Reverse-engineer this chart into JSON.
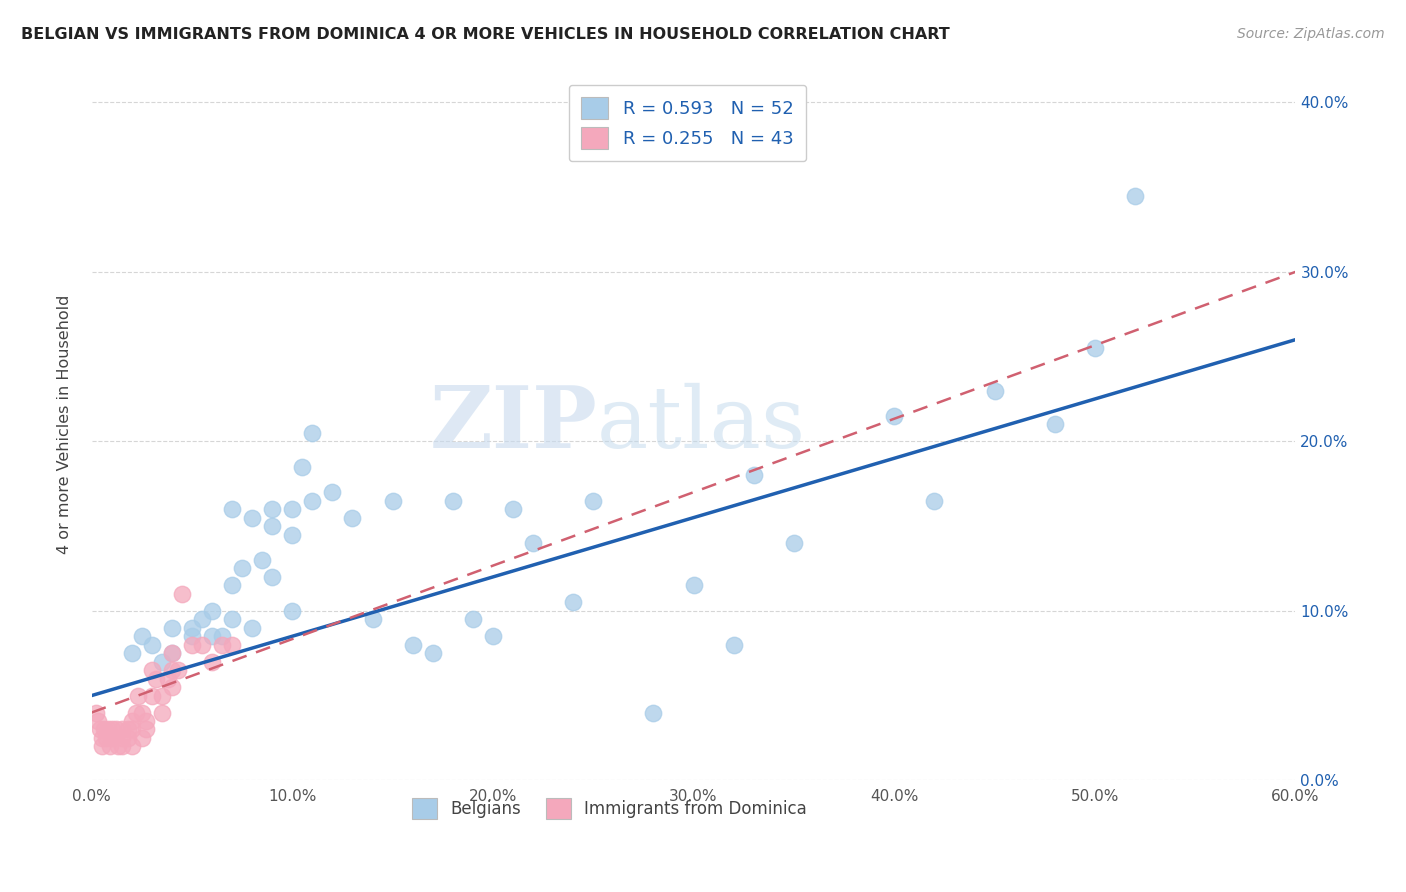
{
  "title": "BELGIAN VS IMMIGRANTS FROM DOMINICA 4 OR MORE VEHICLES IN HOUSEHOLD CORRELATION CHART",
  "source": "Source: ZipAtlas.com",
  "ylabel": "4 or more Vehicles in Household",
  "xlim": [
    0.0,
    0.6
  ],
  "ylim": [
    0.0,
    0.42
  ],
  "xticks": [
    0.0,
    0.1,
    0.2,
    0.3,
    0.4,
    0.5,
    0.6
  ],
  "yticks": [
    0.0,
    0.1,
    0.2,
    0.3,
    0.4
  ],
  "legend_label_blue": "Belgians",
  "legend_label_pink": "Immigrants from Dominica",
  "blue_color": "#a8cce8",
  "pink_color": "#f4a8bc",
  "blue_line_color": "#2060b0",
  "pink_line_color": "#d06070",
  "blue_r": "0.593",
  "blue_n": "52",
  "pink_r": "0.255",
  "pink_n": "43",
  "watermark_zip": "ZIP",
  "watermark_atlas": "atlas",
  "blue_x": [
    0.02,
    0.025,
    0.03,
    0.035,
    0.04,
    0.04,
    0.05,
    0.05,
    0.055,
    0.06,
    0.06,
    0.065,
    0.07,
    0.07,
    0.075,
    0.08,
    0.085,
    0.09,
    0.09,
    0.1,
    0.1,
    0.105,
    0.11,
    0.12,
    0.13,
    0.14,
    0.15,
    0.16,
    0.17,
    0.18,
    0.19,
    0.2,
    0.21,
    0.22,
    0.24,
    0.25,
    0.28,
    0.3,
    0.32,
    0.33,
    0.35,
    0.4,
    0.42,
    0.45,
    0.48,
    0.5,
    0.52,
    0.07,
    0.08,
    0.09,
    0.1,
    0.11
  ],
  "blue_y": [
    0.075,
    0.085,
    0.08,
    0.07,
    0.09,
    0.075,
    0.09,
    0.085,
    0.095,
    0.085,
    0.1,
    0.085,
    0.115,
    0.095,
    0.125,
    0.09,
    0.13,
    0.15,
    0.16,
    0.145,
    0.16,
    0.185,
    0.205,
    0.17,
    0.155,
    0.095,
    0.165,
    0.08,
    0.075,
    0.165,
    0.095,
    0.085,
    0.16,
    0.14,
    0.105,
    0.165,
    0.04,
    0.115,
    0.08,
    0.18,
    0.14,
    0.215,
    0.165,
    0.23,
    0.21,
    0.255,
    0.345,
    0.16,
    0.155,
    0.12,
    0.1,
    0.165
  ],
  "pink_x": [
    0.002,
    0.003,
    0.004,
    0.005,
    0.005,
    0.006,
    0.007,
    0.008,
    0.009,
    0.01,
    0.01,
    0.012,
    0.013,
    0.015,
    0.015,
    0.015,
    0.018,
    0.018,
    0.02,
    0.02,
    0.02,
    0.022,
    0.023,
    0.025,
    0.025,
    0.027,
    0.027,
    0.03,
    0.03,
    0.032,
    0.035,
    0.035,
    0.038,
    0.04,
    0.04,
    0.04,
    0.043,
    0.045,
    0.05,
    0.055,
    0.06,
    0.065,
    0.07
  ],
  "pink_y": [
    0.04,
    0.035,
    0.03,
    0.025,
    0.02,
    0.03,
    0.025,
    0.03,
    0.02,
    0.03,
    0.025,
    0.03,
    0.02,
    0.025,
    0.03,
    0.02,
    0.03,
    0.025,
    0.035,
    0.03,
    0.02,
    0.04,
    0.05,
    0.04,
    0.025,
    0.035,
    0.03,
    0.05,
    0.065,
    0.06,
    0.05,
    0.04,
    0.06,
    0.065,
    0.055,
    0.075,
    0.065,
    0.11,
    0.08,
    0.08,
    0.07,
    0.08,
    0.08
  ],
  "blue_line_x": [
    0.0,
    0.6
  ],
  "blue_line_y": [
    0.05,
    0.26
  ],
  "pink_line_x": [
    0.0,
    0.6
  ],
  "pink_line_y": [
    0.04,
    0.3
  ]
}
